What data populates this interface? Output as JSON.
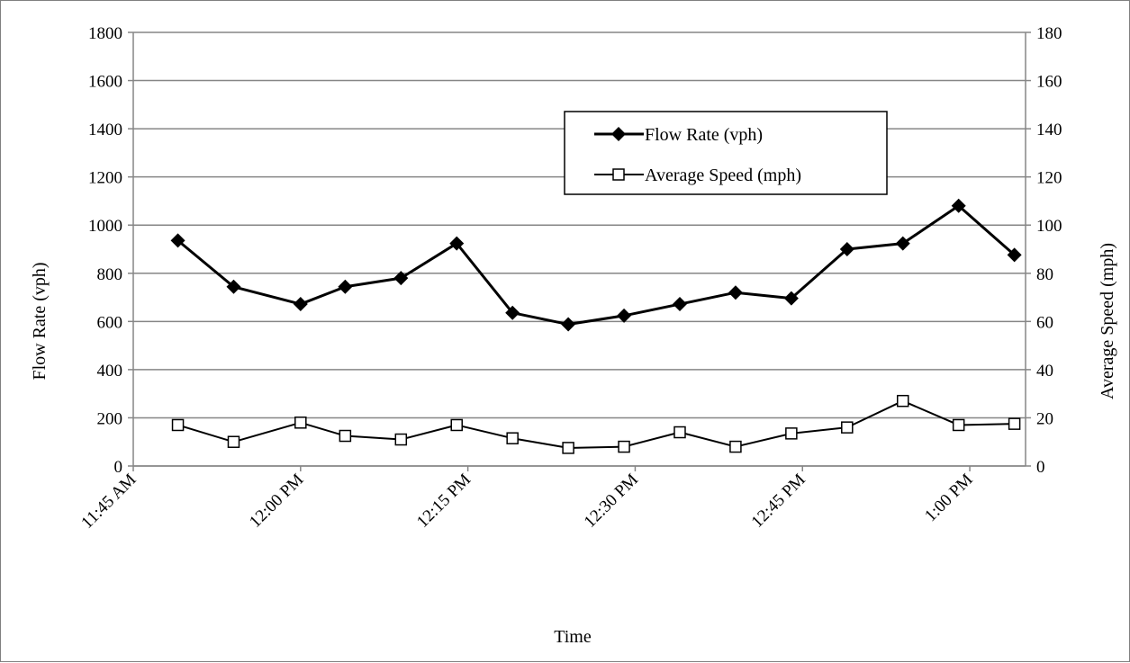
{
  "chart_data": {
    "type": "line",
    "title": "",
    "xlabel": "Time",
    "ylabel": "Flow Rate (vph)",
    "y2label": "Average Speed (mph)",
    "ylim": [
      0,
      1800
    ],
    "y2lim": [
      0,
      180
    ],
    "yticks": [
      "0",
      "200",
      "400",
      "600",
      "800",
      "1000",
      "1200",
      "1400",
      "1600",
      "1800"
    ],
    "y2ticks": [
      "0",
      "20",
      "40",
      "60",
      "80",
      "100",
      "120",
      "140",
      "160",
      "180"
    ],
    "xtick_labels": [
      "11:45 AM",
      "12:00 PM",
      "12:15 PM",
      "12:30 PM",
      "12:45 PM",
      "1:00 PM"
    ],
    "x_axis_range_minutes": [
      0,
      80
    ],
    "xtick_minutes": [
      0,
      15,
      30,
      45,
      60,
      75
    ],
    "x_minutes": [
      4,
      9,
      15,
      19,
      24,
      29,
      34,
      39,
      44,
      49,
      54,
      59,
      64,
      69,
      74,
      79
    ],
    "grid": true,
    "legend_position": "top-right",
    "series": [
      {
        "name": "Flow Rate (vph)",
        "axis": "left",
        "marker": "filled-diamond",
        "color": "#000000",
        "values": [
          936,
          744,
          672,
          744,
          780,
          924,
          636,
          588,
          624,
          672,
          720,
          696,
          900,
          924,
          1080,
          876
        ]
      },
      {
        "name": "Average Speed (mph)",
        "axis": "right",
        "marker": "open-square",
        "color": "#000000",
        "values": [
          17,
          10,
          18,
          12.5,
          11,
          17,
          11.5,
          7.5,
          8,
          14,
          8,
          13.5,
          16,
          27,
          17,
          17.5
        ]
      }
    ]
  }
}
